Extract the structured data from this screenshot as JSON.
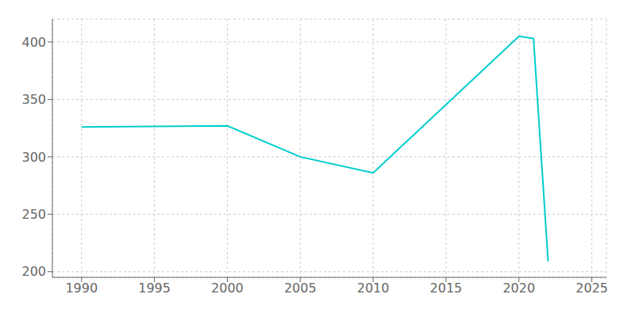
{
  "chart_data": {
    "type": "line",
    "x": [
      1990,
      2000,
      2005,
      2010,
      2020,
      2021,
      2022
    ],
    "values": [
      326,
      327,
      300,
      286,
      405,
      403,
      209
    ],
    "color": "#00CDCD",
    "xlim": [
      1988,
      2026
    ],
    "ylim": [
      195,
      420
    ],
    "xticks": [
      1990,
      1995,
      2000,
      2005,
      2010,
      2015,
      2020,
      2025
    ],
    "yticks": [
      200,
      250,
      300,
      350,
      400
    ],
    "grid": true
  }
}
